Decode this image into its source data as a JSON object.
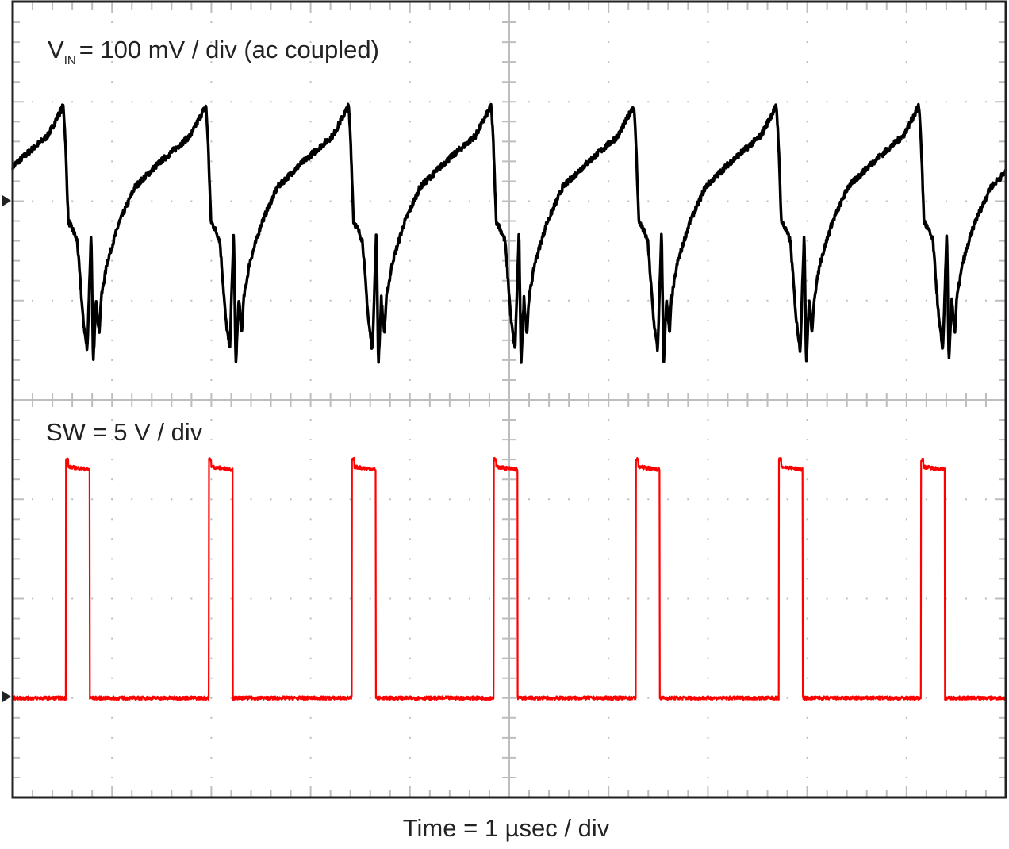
{
  "chart_data": {
    "type": "line",
    "xlabel": "Time = 1 µsec / div",
    "time_per_div_us": 1,
    "x_divisions": 10,
    "y_divisions": 8,
    "grid": true,
    "series": [
      {
        "name": "VIN",
        "label_main": "V",
        "label_sub": "IN",
        "label_rest": "= 100 mV / div (ac coupled)",
        "units": "mV",
        "mv_per_div": 100,
        "color": "#000000",
        "ground_marker_div_from_top": 2,
        "period_us": 1.436,
        "drop_times_us": [
          0.51,
          1.95,
          3.39,
          4.82,
          6.25,
          7.69,
          9.12
        ],
        "cycle_shape": {
          "t_after_drop_us": [
            0,
            0.02,
            0.05,
            0.1,
            0.14,
            0.2,
            0.24,
            0.28,
            0.3,
            0.33,
            0.36,
            0.38,
            0.44,
            0.56,
            0.72,
            0.96,
            1.28,
            1.436
          ],
          "mv": [
            96,
            62,
            -20,
            -30,
            -40,
            -120,
            -150,
            -30,
            -165,
            -98,
            -134,
            -98,
            -62,
            -22,
            14,
            38,
            66,
            96
          ]
        }
      },
      {
        "name": "SW",
        "label_rest": "SW = 5 V / div",
        "units": "V",
        "v_per_div": 5,
        "color": "#ff0000",
        "ground_marker_div_from_top": 7,
        "rise_times_us": [
          0.535,
          1.975,
          3.415,
          4.845,
          6.275,
          7.715,
          9.145
        ],
        "on_time_us": 0.24,
        "high_level_v": 11.5,
        "overshoot_v": 12.0,
        "low_level_v": 0
      }
    ]
  }
}
